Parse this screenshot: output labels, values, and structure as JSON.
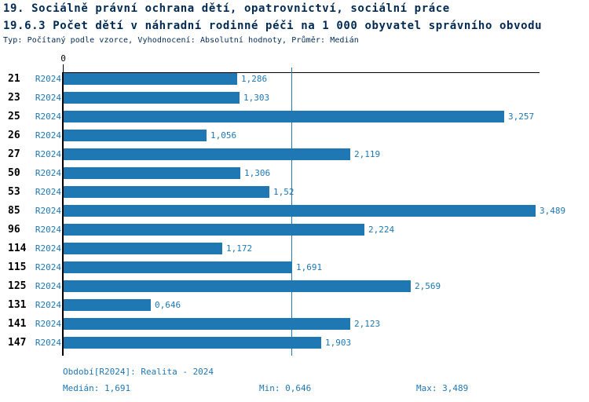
{
  "header": {
    "line1": "19. Sociálně právní ochrana dětí, opatrovnictví, sociální práce",
    "line2": "19.6.3 Počet dětí v náhradní rodinné péči na 1 000 obyvatel správního obvodu",
    "line3": "Typ: Počítaný podle vzorce, Vyhodnocení: Absolutní hodnoty, Průměr: Medián"
  },
  "chart_data": {
    "type": "bar",
    "orientation": "horizontal",
    "title": "19.6.3 Počet dětí v náhradní rodinné péči na 1 000 obyvatel správního obvodu",
    "categories": [
      "21",
      "23",
      "25",
      "26",
      "27",
      "50",
      "53",
      "85",
      "96",
      "114",
      "115",
      "125",
      "131",
      "141",
      "147"
    ],
    "series_label": "R2024",
    "values": [
      1.286,
      1.303,
      3.257,
      1.056,
      2.119,
      1.306,
      1.52,
      3.489,
      2.224,
      1.172,
      1.691,
      2.569,
      0.646,
      2.123,
      1.903
    ],
    "value_labels": [
      "1,286",
      "1,303",
      "3,257",
      "1,056",
      "2,119",
      "1,306",
      "1,52",
      "3,489",
      "2,224",
      "1,172",
      "1,691",
      "2,569",
      "0,646",
      "2,123",
      "1,903"
    ],
    "xlim": [
      0,
      3.52
    ],
    "x_tick_labels": [
      "0"
    ],
    "grid": false,
    "median": 1.691,
    "min": 0.646,
    "max": 3.489,
    "bar_color": "#1f77b4",
    "median_line_color": "#1f77b4"
  },
  "footer": {
    "period": "Období[R2024]: Realita - 2024",
    "median": "Medián: 1,691",
    "min": "Min: 0,646",
    "max": "Max: 3,489"
  }
}
